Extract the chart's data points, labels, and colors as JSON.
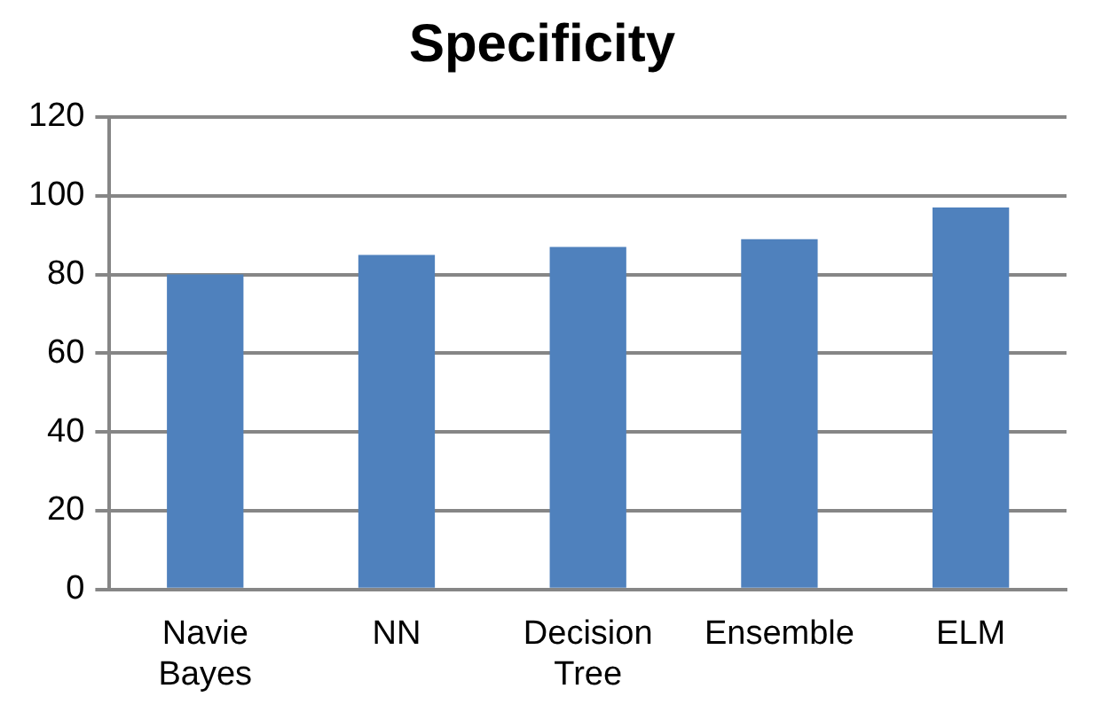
{
  "chart_data": {
    "type": "bar",
    "title": "Specificity",
    "categories": [
      "Navie Bayes",
      "NN",
      "Decision Tree",
      "Ensemble",
      "ELM"
    ],
    "values": [
      80,
      85,
      87,
      89,
      97
    ],
    "color": "#4f81bd",
    "ylim": [
      0,
      120
    ],
    "yticks": [
      0,
      20,
      40,
      60,
      80,
      100,
      120
    ],
    "grid": "y"
  }
}
